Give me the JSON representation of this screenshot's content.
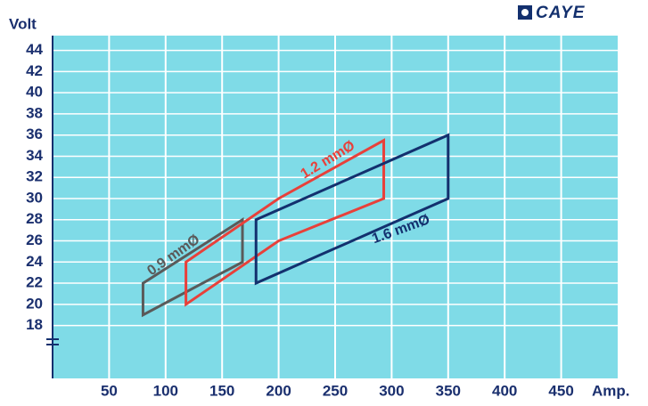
{
  "chart_data": {
    "type": "line",
    "logo": "CAYE",
    "y_label": "Volt",
    "x_label": "Amp.",
    "xlim": [
      0,
      500
    ],
    "xticks": [
      50,
      100,
      150,
      200,
      250,
      300,
      350,
      400,
      450
    ],
    "ylim": [
      13,
      45.4
    ],
    "yticks": [
      18,
      20,
      22,
      24,
      26,
      28,
      30,
      32,
      34,
      36,
      38,
      40,
      42,
      44
    ],
    "grid": true,
    "closed": true,
    "series": [
      {
        "name": "0.9 mmØ",
        "color": "#5a5a5a",
        "x": [
          80,
          80,
          168,
          168
        ],
        "values": [
          19,
          22,
          28,
          24
        ]
      },
      {
        "name": "1.2 mmØ",
        "color": "#e8403a",
        "x": [
          118,
          118,
          200,
          293,
          293,
          200
        ],
        "values": [
          20,
          24,
          30,
          35.5,
          30,
          26
        ]
      },
      {
        "name": "1.6 mmØ",
        "color": "#13306e",
        "x": [
          180,
          180,
          350,
          350
        ],
        "values": [
          22,
          28,
          36,
          30
        ]
      }
    ]
  }
}
